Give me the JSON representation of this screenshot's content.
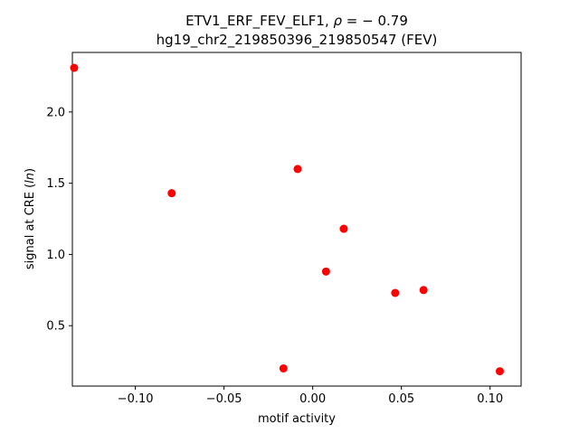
{
  "chart_data": {
    "type": "scatter",
    "title_line1_prefix": "ETV1_ERF_FEV_ELF1, ",
    "title_rho_symbol": "ρ",
    "title_rho_value": " = − 0.79",
    "title_line2": "hg19_chr2_219850396_219850547 (FEV)",
    "xlabel": "motif activity",
    "ylabel_prefix": "signal at CRE (",
    "ylabel_italic": "ln",
    "ylabel_suffix": ")",
    "xlim": [
      -0.1355,
      0.1175
    ],
    "ylim": [
      0.076,
      2.418
    ],
    "xticks": [
      {
        "value": -0.1,
        "label": "−0.10"
      },
      {
        "value": -0.05,
        "label": "−0.05"
      },
      {
        "value": 0.0,
        "label": "0.00"
      },
      {
        "value": 0.05,
        "label": "0.05"
      },
      {
        "value": 0.1,
        "label": "0.10"
      }
    ],
    "yticks": [
      {
        "value": 0.5,
        "label": "0.5"
      },
      {
        "value": 1.0,
        "label": "1.0"
      },
      {
        "value": 1.5,
        "label": "1.5"
      },
      {
        "value": 2.0,
        "label": "2.0"
      }
    ],
    "marker_color": "#ff0000",
    "points": [
      {
        "x": -0.1345,
        "y": 2.31
      },
      {
        "x": -0.0795,
        "y": 1.43
      },
      {
        "x": -0.0085,
        "y": 1.6
      },
      {
        "x": 0.0175,
        "y": 1.18
      },
      {
        "x": 0.0075,
        "y": 0.88
      },
      {
        "x": 0.0465,
        "y": 0.73
      },
      {
        "x": 0.0625,
        "y": 0.75
      },
      {
        "x": -0.0165,
        "y": 0.2
      },
      {
        "x": 0.1055,
        "y": 0.18
      }
    ],
    "grid": false,
    "legend": "none"
  }
}
